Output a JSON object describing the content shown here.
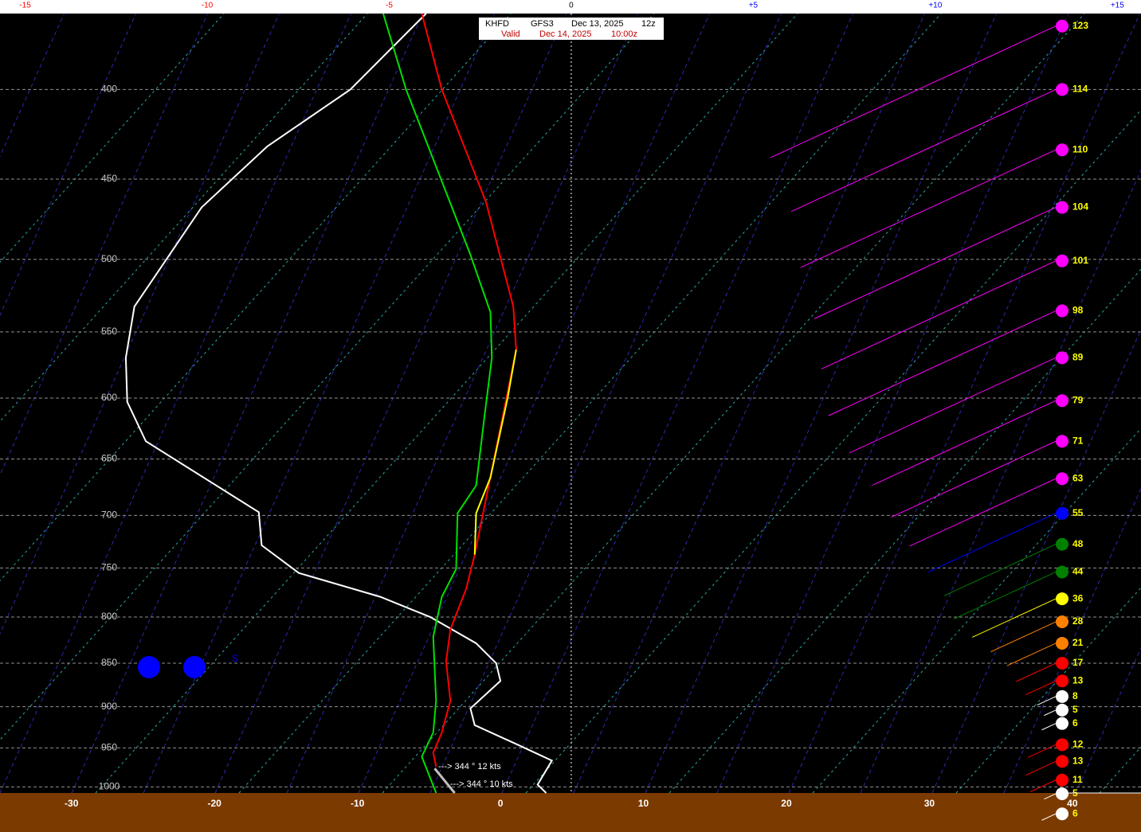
{
  "chart_data": {
    "type": "skewt",
    "station": "KHFD",
    "model": "GFS3",
    "run_date": "Dec 13, 2025",
    "run_hour": "12z",
    "valid_label": "Valid",
    "valid_date": "Dec 14, 2025",
    "valid_time": "10:00z",
    "log_y": true,
    "ylim": [
      1008,
      362
    ],
    "yticks": [
      400,
      450,
      500,
      550,
      600,
      650,
      700,
      750,
      800,
      850,
      900,
      950,
      1000
    ],
    "xlim": [
      -35,
      44.8
    ],
    "xticks": [
      -30,
      -20,
      -10,
      0,
      10,
      20,
      30,
      40
    ],
    "x2lim": [
      -15.69,
      15.65
    ],
    "x2ticks": [
      -15,
      -10,
      -5,
      0,
      {
        "value": 5,
        "label": "+5"
      },
      {
        "value": 10,
        "label": "+10"
      },
      {
        "value": 15,
        "label": "+15"
      }
    ],
    "x2tick_colors": [
      "#ff0000",
      "#ff0000",
      "#ff0000",
      "#000000",
      "#0000ff",
      "#0000ff",
      "#0000ff"
    ],
    "grid": true,
    "series": [
      {
        "color": "#ffffff",
        "pressure": [
          362,
          400,
          431,
          467,
          532,
          569,
          603,
          635,
          697,
          728,
          755,
          779,
          800,
          828,
          850,
          870,
          902,
          922,
          946,
          966,
          997,
          1008
        ],
        "values": [
          -5.2,
          -10.5,
          -16.3,
          -20.9,
          -25.6,
          -26.2,
          -26.1,
          -24.8,
          -16.9,
          -16.7,
          -14.1,
          -8.4,
          -4.9,
          -1.7,
          -0.3,
          0,
          -2.1,
          -1.8,
          1.2,
          3.6,
          2.6,
          3.2
        ]
      },
      {
        "color": "#00e000",
        "pressure": [
          362,
          400,
          497,
          536,
          569,
          613,
          673,
          698,
          751,
          779,
          821,
          893,
          931,
          961,
          1008
        ],
        "values": [
          -8.2,
          -6.6,
          -2.1,
          -0.7,
          -0.6,
          -1.1,
          -1.7,
          -3.0,
          -3.1,
          -4.1,
          -4.7,
          -4.5,
          -4.7,
          -5.5,
          -4.5
        ]
      },
      {
        "color": "#ff0000",
        "pressure": [
          362,
          400,
          464,
          532,
          563,
          737,
          771,
          813,
          848,
          893,
          931,
          956,
          974
        ],
        "values": [
          -5.5,
          -4.1,
          -1.0,
          0.9,
          1.1,
          -1.8,
          -2.4,
          -3.5,
          -3.8,
          -3.5,
          -4.1,
          -4.7,
          -4.5
        ]
      },
      {
        "color": "#ffff00",
        "pressure": [
          563,
          600,
          666,
          698,
          737
        ],
        "values": [
          1.1,
          0.5,
          -0.7,
          -1.7,
          -1.8
        ]
      },
      {
        "color": "#c0c0c0",
        "pressure": [
          976,
          1008
        ],
        "values": [
          -4.6,
          -3.2
        ]
      }
    ],
    "winds": {
      "pressure": [
        368,
        400,
        433,
        467,
        501,
        535,
        569,
        602,
        635,
        667,
        698,
        727,
        754,
        781,
        805,
        828,
        850,
        870,
        888,
        904,
        920,
        946,
        967,
        991,
        1009,
        1036
      ],
      "values": [
        123,
        114,
        110,
        104,
        101,
        98,
        89,
        79,
        71,
        63,
        55,
        48,
        44,
        36,
        28,
        21,
        17,
        13,
        8,
        5,
        6,
        12,
        13,
        11,
        5,
        6
      ],
      "colors": [
        "#ff00ff",
        "#ff00ff",
        "#ff00ff",
        "#ff00ff",
        "#ff00ff",
        "#ff00ff",
        "#ff00ff",
        "#ff00ff",
        "#ff00ff",
        "#ff00ff",
        "#0000ff",
        "#008000",
        "#008000",
        "#ffff00",
        "#ff8000",
        "#ff8000",
        "#ff0000",
        "#ff0000",
        "#ffffff",
        "#ffffff",
        "#ffffff",
        "#ff0000",
        "#ff0000",
        "#ff0000",
        "#ffffff",
        "#ffffff"
      ],
      "label_color": "#ffff00"
    },
    "annotations": [
      "---> 344 ° 12 kts",
      "---> 344 ° 10 kts"
    ],
    "marker_label": "S"
  }
}
